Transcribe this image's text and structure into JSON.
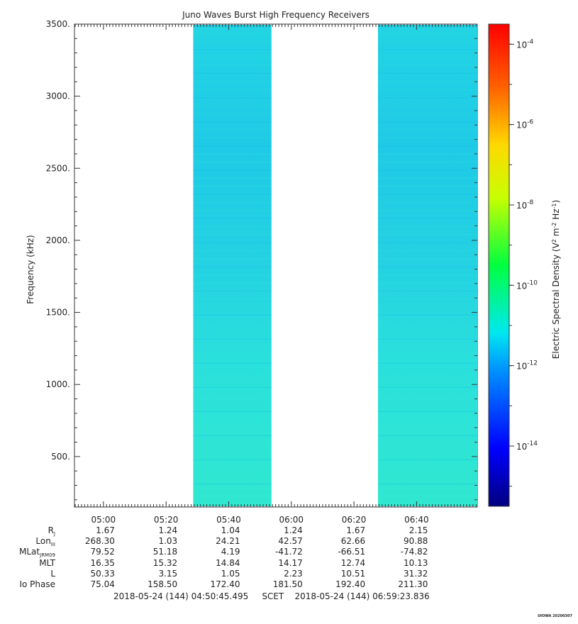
{
  "chart_data": {
    "type": "heatmap",
    "title": "Juno Waves Burst High Frequency Receivers",
    "ylabel": "Frequency (kHz)",
    "ylim": [
      150,
      3500
    ],
    "yticks": [
      500,
      1000,
      1500,
      2000,
      2500,
      3000,
      3500
    ],
    "ytick_labels": [
      "500.",
      "1000.",
      "1500.",
      "2000.",
      "2500.",
      "3000.",
      "3500."
    ],
    "xlim": [
      "04:50:45",
      "06:59:23"
    ],
    "xtick_labels": [
      "05:00",
      "05:20",
      "05:40",
      "06:00",
      "06:20",
      "06:40"
    ],
    "data_intervals": [
      {
        "start": "05:28:40",
        "end": "05:53:40"
      },
      {
        "start": "06:27:40",
        "end": "06:59:23"
      }
    ],
    "colorbar": {
      "label": "Electric Spectral Density (V2 m-2 Hz-1)",
      "log_range": [
        -15.5,
        -3.5
      ],
      "tick_exponents": [
        -14,
        -12,
        -10,
        -8,
        -6,
        -4
      ],
      "tick_labels": [
        "10-14",
        "10-12",
        "10-10",
        "10-8",
        "10-6",
        "10-4"
      ]
    },
    "background_level_exp": -12
  },
  "ephemeris": {
    "rows": [
      {
        "label": "R",
        "sub": "J",
        "values": [
          "1.67",
          "1.24",
          "1.04",
          "1.24",
          "1.67",
          "2.15"
        ]
      },
      {
        "label": "Lon",
        "sub": "III",
        "values": [
          "268.30",
          "1.03",
          "24.21",
          "42.57",
          "62.66",
          "90.88"
        ]
      },
      {
        "label": "MLat",
        "sub": "JRM09",
        "values": [
          "79.52",
          "51.18",
          "4.19",
          "-41.72",
          "-66.51",
          "-74.82"
        ]
      },
      {
        "label": "MLT",
        "sub": "",
        "values": [
          "16.35",
          "15.32",
          "14.84",
          "14.17",
          "12.74",
          "10.13"
        ]
      },
      {
        "label": "L",
        "sub": "",
        "values": [
          "50.33",
          "3.15",
          "1.05",
          "2.23",
          "10.51",
          "31.32"
        ]
      },
      {
        "label": "Io Phase",
        "sub": "",
        "values": [
          "75.04",
          "158.50",
          "172.40",
          "181.50",
          "192.40",
          "211.30"
        ]
      }
    ]
  },
  "footer": {
    "start": "2018-05-24 (144) 04:50:45.495",
    "mid": "SCET",
    "end": "2018-05-24 (144) 06:59:23.836"
  },
  "stamp": "UIOWA 20200307"
}
